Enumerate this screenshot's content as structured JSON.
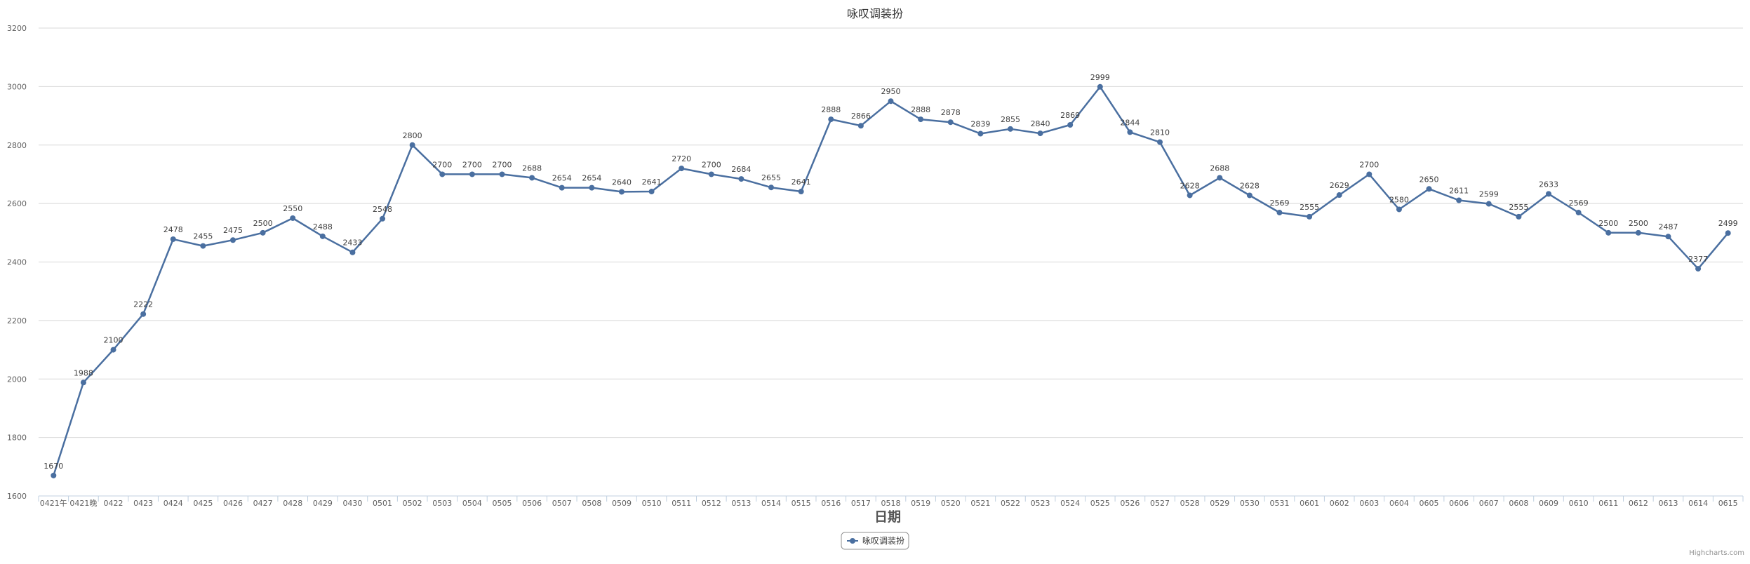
{
  "chart_data": {
    "type": "line",
    "title": "咏叹调装扮",
    "xlabel": "日期",
    "ylabel": "",
    "ylim": [
      1600,
      3200
    ],
    "yticks": [
      1600,
      1800,
      2000,
      2200,
      2400,
      2600,
      2800,
      3000,
      3200
    ],
    "grid": true,
    "legend_position": "bottom-center",
    "categories": [
      "0421午",
      "0421晚",
      "0422",
      "0423",
      "0424",
      "0425",
      "0426",
      "0427",
      "0428",
      "0429",
      "0430",
      "0501",
      "0502",
      "0503",
      "0504",
      "0505",
      "0506",
      "0507",
      "0508",
      "0509",
      "0510",
      "0511",
      "0512",
      "0513",
      "0514",
      "0515",
      "0516",
      "0517",
      "0518",
      "0519",
      "0520",
      "0521",
      "0522",
      "0523",
      "0524",
      "0525",
      "0526",
      "0527",
      "0528",
      "0529",
      "0530",
      "0531",
      "0601",
      "0602",
      "0603",
      "0604",
      "0605",
      "0606",
      "0607",
      "0608",
      "0609",
      "0610",
      "0611",
      "0612",
      "0613",
      "0614",
      "0615"
    ],
    "series": [
      {
        "name": "咏叹调装扮",
        "color": "#4a6fa0",
        "values": [
          1670,
          1988,
          2100,
          2222,
          2478,
          2455,
          2475,
          2500,
          2550,
          2488,
          2433,
          2548,
          2800,
          2700,
          2700,
          2700,
          2688,
          2654,
          2654,
          2640,
          2641,
          2720,
          2700,
          2684,
          2655,
          2641,
          2888,
          2866,
          2950,
          2888,
          2878,
          2839,
          2855,
          2840,
          2869,
          2999,
          2844,
          2810,
          2628,
          2688,
          2628,
          2569,
          2555,
          2629,
          2700,
          2580,
          2650,
          2611,
          2599,
          2555,
          2633,
          2569,
          2500,
          2500,
          2487,
          2377,
          2499
        ]
      }
    ]
  },
  "credits": "Highcharts.com"
}
